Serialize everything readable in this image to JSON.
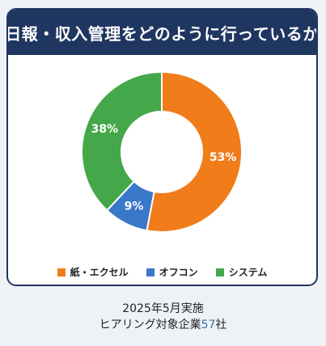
{
  "chart_data": {
    "type": "pie",
    "title": "日報・収入管理をどのように行っているか",
    "categories": [
      "紙・エクセル",
      "オフコン",
      "システム"
    ],
    "values": [
      53,
      9,
      38
    ],
    "labels": [
      "53%",
      "9%",
      "38%"
    ],
    "colors": [
      "#f07c1a",
      "#3a78c9",
      "#44a84a"
    ],
    "legend_position": "bottom"
  },
  "footer": {
    "line1": "2025年5月実施",
    "line2_prefix": "ヒアリング対象企業",
    "line2_number": "57",
    "line2_suffix": "社"
  }
}
